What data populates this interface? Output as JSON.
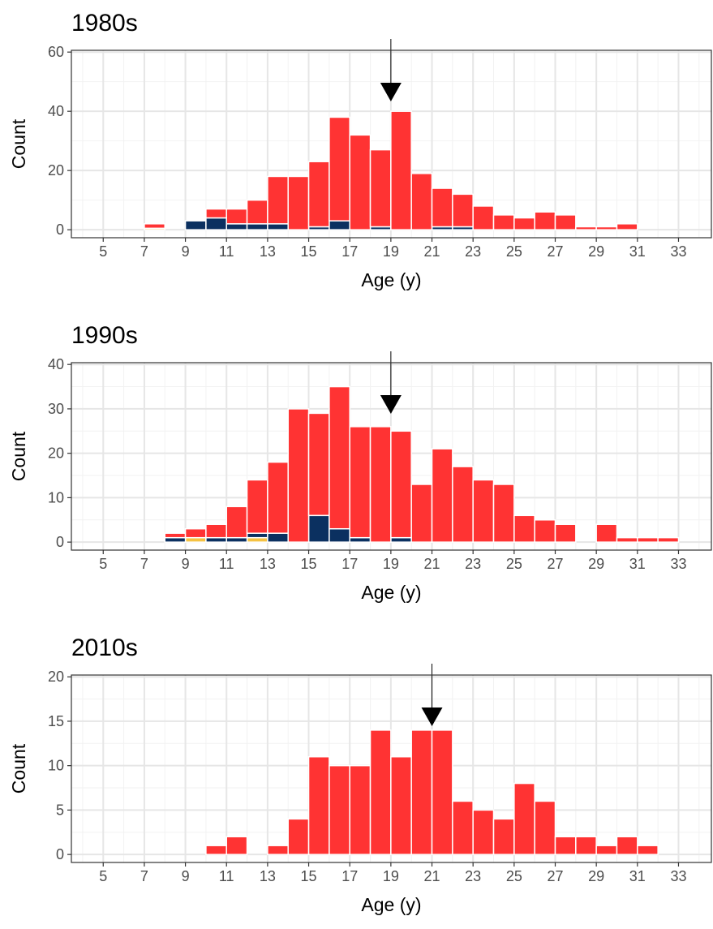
{
  "chart_data": [
    {
      "type": "bar",
      "stacked": true,
      "title": "1980s",
      "xlabel": "Age (y)",
      "ylabel": "Count",
      "xlim": [
        5,
        33
      ],
      "ylim": [
        0,
        60
      ],
      "xticks": [
        "5",
        "7",
        "9",
        "11",
        "13",
        "15",
        "17",
        "19",
        "21",
        "23",
        "25",
        "27",
        "29",
        "31",
        "33"
      ],
      "yticks": [
        "0",
        "20",
        "40",
        "60"
      ],
      "grid": true,
      "arrow_at": 19,
      "colors": {
        "red": "#ff3333",
        "navy": "#0b3060",
        "yellow": "#f5c242"
      },
      "ages": [
        7,
        9,
        10,
        11,
        12,
        13,
        14,
        15,
        16,
        17,
        18,
        19,
        20,
        21,
        22,
        23,
        24,
        25,
        26,
        27,
        28,
        29,
        30
      ],
      "series": [
        {
          "color": "yellow",
          "values": [
            0.5,
            0,
            0,
            0,
            0,
            0,
            0,
            0,
            0,
            0,
            0,
            0,
            0,
            0,
            0,
            0,
            0,
            0,
            0,
            0,
            0,
            0,
            0
          ]
        },
        {
          "color": "navy",
          "values": [
            0,
            3,
            4,
            2,
            2,
            2,
            0,
            1,
            3,
            0,
            1,
            0,
            0,
            1,
            1,
            0,
            0,
            0,
            0,
            0,
            0,
            0,
            0
          ]
        },
        {
          "color": "red",
          "values": [
            1.5,
            0,
            3,
            5,
            8,
            16,
            18,
            22,
            35,
            32,
            26,
            40,
            19,
            13,
            11,
            8,
            5,
            4,
            6,
            5,
            1,
            1,
            2
          ]
        }
      ]
    },
    {
      "type": "bar",
      "stacked": true,
      "title": "1990s",
      "xlabel": "Age (y)",
      "ylabel": "Count",
      "xlim": [
        5,
        33
      ],
      "ylim": [
        0,
        40
      ],
      "xticks": [
        "5",
        "7",
        "9",
        "11",
        "13",
        "15",
        "17",
        "19",
        "21",
        "23",
        "25",
        "27",
        "29",
        "31",
        "33"
      ],
      "yticks": [
        "0",
        "10",
        "20",
        "30",
        "40"
      ],
      "grid": true,
      "arrow_at": 19,
      "colors": {
        "red": "#ff3333",
        "navy": "#0b3060",
        "yellow": "#f5c242"
      },
      "ages": [
        8,
        9,
        10,
        11,
        12,
        13,
        14,
        15,
        16,
        17,
        18,
        19,
        20,
        21,
        22,
        23,
        24,
        25,
        26,
        27,
        29,
        30,
        31,
        32
      ],
      "series": [
        {
          "color": "yellow",
          "values": [
            0,
            1,
            0,
            0,
            1,
            0,
            0,
            0,
            0,
            0,
            0,
            0,
            0,
            0,
            0,
            0,
            0,
            0,
            0,
            0,
            0,
            0,
            0,
            0
          ]
        },
        {
          "color": "navy",
          "values": [
            1,
            0,
            1,
            1,
            1,
            2,
            0,
            6,
            3,
            1,
            0,
            1,
            0,
            0,
            0,
            0,
            0,
            0,
            0,
            0,
            0,
            0,
            0,
            0
          ]
        },
        {
          "color": "red",
          "values": [
            1,
            2,
            3,
            7,
            12,
            16,
            30,
            23,
            32,
            25,
            26,
            24,
            13,
            21,
            17,
            14,
            13,
            6,
            5,
            4,
            4,
            1,
            1,
            1
          ]
        }
      ]
    },
    {
      "type": "bar",
      "stacked": true,
      "title": "2010s",
      "xlabel": "Age (y)",
      "ylabel": "Count",
      "xlim": [
        5,
        33
      ],
      "ylim": [
        0,
        20
      ],
      "xticks": [
        "5",
        "7",
        "9",
        "11",
        "13",
        "15",
        "17",
        "19",
        "21",
        "23",
        "25",
        "27",
        "29",
        "31",
        "33"
      ],
      "yticks": [
        "0",
        "5",
        "10",
        "15",
        "20"
      ],
      "grid": true,
      "arrow_at": 21,
      "colors": {
        "red": "#ff3333",
        "navy": "#0b3060",
        "yellow": "#f5c242"
      },
      "ages": [
        10,
        11,
        13,
        14,
        15,
        16,
        17,
        18,
        19,
        20,
        21,
        22,
        23,
        24,
        25,
        26,
        27,
        28,
        29,
        30,
        31
      ],
      "series": [
        {
          "color": "red",
          "values": [
            1,
            2,
            1,
            4,
            11,
            10,
            10,
            14,
            11,
            14,
            14,
            6,
            5,
            4,
            8,
            6,
            2,
            2,
            1,
            2,
            1
          ]
        }
      ]
    }
  ]
}
